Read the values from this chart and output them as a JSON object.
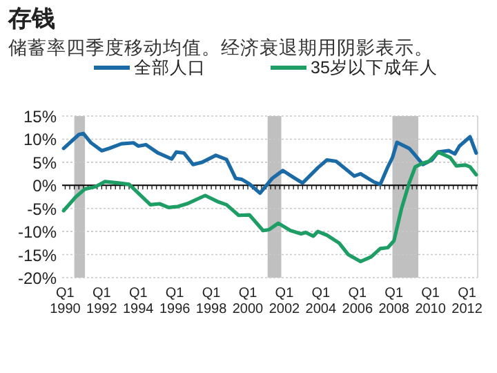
{
  "chart_data": {
    "type": "line",
    "title": "存钱",
    "subtitle": "储蓄率四季度移动均值。经济衰退期用阴影表示。",
    "xlim": [
      "1989-11",
      "2012-08"
    ],
    "xticks": [
      {
        "value": "1990-01",
        "label": "Q1 1990"
      },
      {
        "value": "1992-01",
        "label": "Q1 1992"
      },
      {
        "value": "1994-01",
        "label": "Q1 1994"
      },
      {
        "value": "1996-01",
        "label": "Q1 1996"
      },
      {
        "value": "1998-01",
        "label": "Q1 1998"
      },
      {
        "value": "2000-01",
        "label": "Q1 2000"
      },
      {
        "value": "2002-01",
        "label": "Q1 2002"
      },
      {
        "value": "2004-01",
        "label": "Q1 2004"
      },
      {
        "value": "2006-01",
        "label": "Q1 2006"
      },
      {
        "value": "2008-01",
        "label": "Q1 2008"
      },
      {
        "value": "2010-01",
        "label": "Q1 2010"
      },
      {
        "value": "2012-01",
        "label": "Q1 2012"
      }
    ],
    "ylim": [
      -20,
      15
    ],
    "yticks": [
      {
        "value": 15,
        "label": "15%"
      },
      {
        "value": 10,
        "label": "10%"
      },
      {
        "value": 5,
        "label": "5%"
      },
      {
        "value": 0,
        "label": "0%"
      },
      {
        "value": -5,
        "label": "-5%"
      },
      {
        "value": -10,
        "label": "-10%"
      },
      {
        "value": -15,
        "label": "-15%"
      },
      {
        "value": -20,
        "label": "-20%"
      }
    ],
    "grid": "y",
    "legend": "top",
    "line_style": "solid",
    "bands": [
      {
        "axis": "x",
        "from": "1990-07",
        "to": "1991-02",
        "color": "#c0c0c0"
      },
      {
        "axis": "x",
        "from": "2001-02",
        "to": "2001-11",
        "color": "#c0c0c0"
      },
      {
        "axis": "x",
        "from": "2007-12",
        "to": "2009-05",
        "color": "#c0c0c0"
      }
    ],
    "series": [
      {
        "name": "全部人口",
        "color": "#1a6aa5",
        "x": [
          "1989-12",
          "1990-10",
          "1991-01",
          "1991-06",
          "1992-01",
          "1992-06",
          "1993-02",
          "1993-10",
          "1994-01",
          "1994-06",
          "1995-02",
          "1995-11",
          "1996-02",
          "1996-07",
          "1997-01",
          "1997-07",
          "1998-04",
          "1998-11",
          "1999-05",
          "1999-09",
          "2000-02",
          "2000-09",
          "2001-05",
          "2001-12",
          "2002-08",
          "2003-01",
          "2003-11",
          "2004-05",
          "2004-11",
          "2005-11",
          "2006-03",
          "2006-12",
          "2007-04",
          "2007-09",
          "2007-12",
          "2008-03",
          "2008-11",
          "2009-03",
          "2009-08",
          "2010-02",
          "2010-06",
          "2011-01",
          "2011-05",
          "2011-08",
          "2012-03",
          "2012-07"
        ],
        "values": [
          8,
          11,
          11.2,
          9.2,
          7.5,
          8,
          9,
          9.2,
          8.5,
          8.8,
          7,
          5.7,
          7.2,
          7,
          4.5,
          5,
          6.5,
          5.6,
          1.5,
          1.3,
          0.3,
          -1.7,
          1.5,
          3.2,
          1.5,
          0.5,
          3.8,
          5.5,
          5.2,
          2,
          2.5,
          0.7,
          0.2,
          4,
          6,
          9.3,
          8,
          6.5,
          4.5,
          5.5,
          7.2,
          7.5,
          6.8,
          8.5,
          10.5,
          7
        ]
      },
      {
        "name": "35岁以下成年人",
        "color": "#1e9e64",
        "x": [
          "1989-12",
          "1990-08",
          "1991-02",
          "1991-09",
          "1992-03",
          "1992-12",
          "1993-07",
          "1994-09",
          "1995-03",
          "1995-09",
          "1996-03",
          "1996-09",
          "1997-09",
          "1998-05",
          "1998-11",
          "1999-07",
          "2000-02",
          "2000-11",
          "2001-03",
          "2001-09",
          "2002-05",
          "2002-12",
          "2003-03",
          "2003-08",
          "2003-11",
          "2004-05",
          "2005-01",
          "2005-07",
          "2006-03",
          "2006-10",
          "2007-04",
          "2007-09",
          "2008-01",
          "2008-06",
          "2008-11",
          "2009-03",
          "2009-08",
          "2009-12",
          "2010-06",
          "2011-02",
          "2011-06",
          "2011-12",
          "2012-03",
          "2012-07"
        ],
        "values": [
          -5.5,
          -2.5,
          -0.8,
          -0.3,
          0.8,
          0.5,
          0.2,
          -4.2,
          -4,
          -4.8,
          -4.6,
          -4,
          -2.2,
          -3.5,
          -4.2,
          -6.5,
          -6.4,
          -9.8,
          -9.6,
          -8.2,
          -9.8,
          -10.5,
          -10.2,
          -11,
          -10,
          -10.8,
          -12.5,
          -15,
          -16.5,
          -15.5,
          -13.7,
          -13.5,
          -12,
          -5,
          0.5,
          4,
          4.8,
          5.2,
          7.2,
          6,
          4.2,
          4.4,
          4,
          2.3
        ]
      }
    ]
  }
}
